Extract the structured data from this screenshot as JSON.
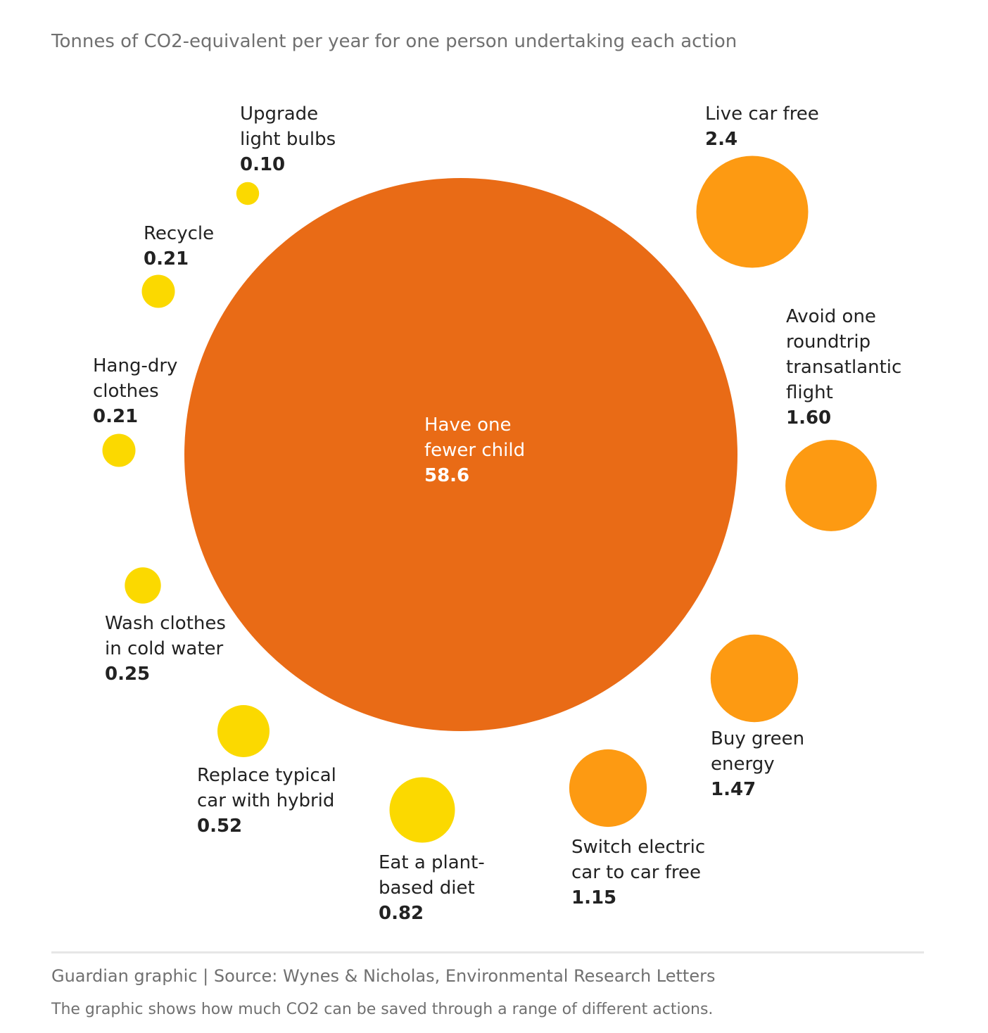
{
  "subtitle": "Tonnes of CO2-equivalent per year for one person undertaking each action",
  "source": "Guardian graphic | Source: Wynes & Nicholas, Environmental Research Letters",
  "caption": "The graphic shows how much CO2 can be saved through a range of different actions.",
  "colors": {
    "high": "#e96b16",
    "medium": "#fd9a12",
    "low": "#fbd900"
  },
  "chart_data": {
    "type": "bubble",
    "title": "",
    "unit": "Tonnes of CO2-equivalent per year",
    "items": [
      {
        "label": [
          "Have one",
          "fewer child"
        ],
        "value": 58.6,
        "display": "58.6",
        "group": "high"
      },
      {
        "label": [
          "Live car free"
        ],
        "value": 2.4,
        "display": "2.4",
        "group": "medium"
      },
      {
        "label": [
          "Avoid one",
          "roundtrip",
          "transatlantic",
          "flight"
        ],
        "value": 1.6,
        "display": "1.60",
        "group": "medium"
      },
      {
        "label": [
          "Buy green",
          "energy"
        ],
        "value": 1.47,
        "display": "1.47",
        "group": "medium"
      },
      {
        "label": [
          "Switch electric",
          "car to car free"
        ],
        "value": 1.15,
        "display": "1.15",
        "group": "medium"
      },
      {
        "label": [
          "Eat a plant-",
          "based diet"
        ],
        "value": 0.82,
        "display": "0.82",
        "group": "low"
      },
      {
        "label": [
          "Replace typical",
          "car with hybrid"
        ],
        "value": 0.52,
        "display": "0.52",
        "group": "low"
      },
      {
        "label": [
          "Wash clothes",
          "in cold water"
        ],
        "value": 0.25,
        "display": "0.25",
        "group": "low"
      },
      {
        "label": [
          "Hang-dry",
          "clothes"
        ],
        "value": 0.21,
        "display": "0.21",
        "group": "low"
      },
      {
        "label": [
          "Recycle"
        ],
        "value": 0.21,
        "display": "0.21",
        "group": "low"
      },
      {
        "label": [
          "Upgrade",
          "light bulbs"
        ],
        "value": 0.1,
        "display": "0.10",
        "group": "low"
      }
    ]
  }
}
